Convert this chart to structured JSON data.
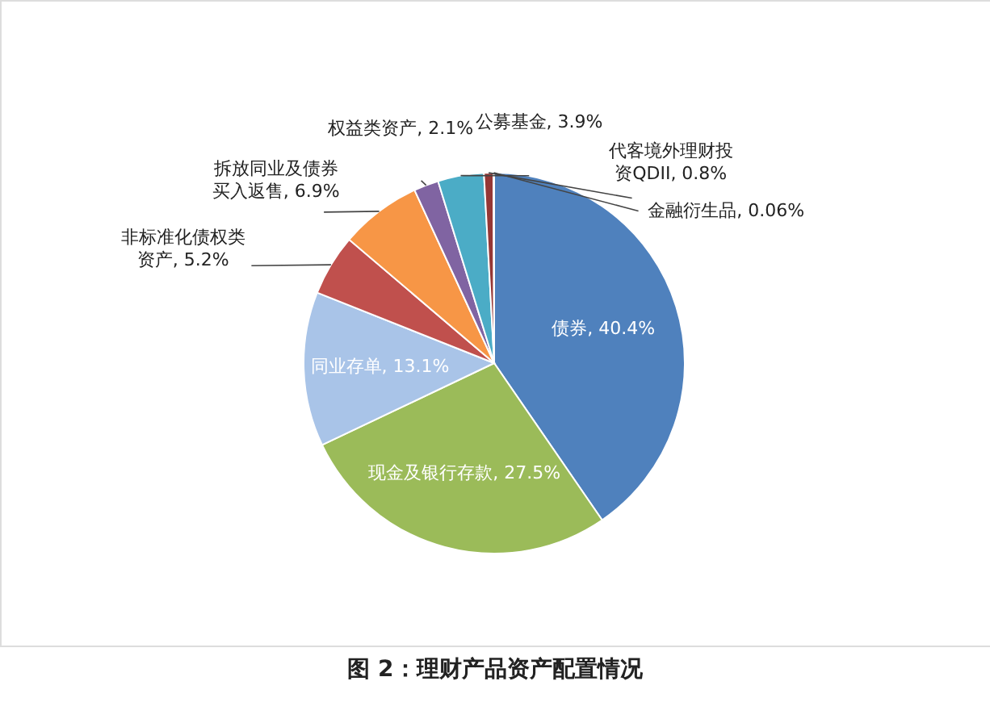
{
  "chart_data": {
    "type": "pie",
    "title": "图 2：理财产品资产配置情况",
    "categories": [
      "债券",
      "现金及银行存款",
      "同业存单",
      "非标准化债权类资产",
      "拆放同业及债券买入返售",
      "权益类资产",
      "公募基金",
      "代客境外理财投资QDII",
      "金融衍生品"
    ],
    "values": [
      40.4,
      27.5,
      13.1,
      5.2,
      6.9,
      2.1,
      3.9,
      0.8,
      0.06
    ],
    "value_labels": [
      "40.4%",
      "27.5%",
      "13.1%",
      "5.2%",
      "6.9%",
      "2.1%",
      "3.9%",
      "0.8%",
      "0.06%"
    ],
    "colors": [
      "#4f81bd",
      "#9bbb59",
      "#a9c4e8",
      "#c0504d",
      "#f79646",
      "#8064a2",
      "#4bacc6",
      "#953735",
      "#d9d9d9"
    ]
  }
}
